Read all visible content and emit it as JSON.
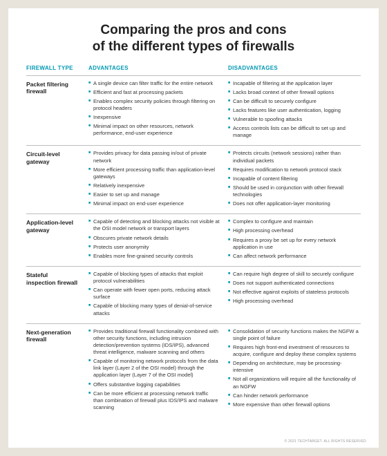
{
  "meta": {
    "title_line1": "Comparing the pros and cons",
    "title_line2": "of the different types of firewalls",
    "footer": "© 2021 TECHTARGET. ALL RIGHTS RESERVED"
  },
  "colors": {
    "accent": "#0099b3",
    "text": "#222222",
    "body_text": "#333333",
    "divider": "#bdbdbd",
    "page_bg": "#ffffff",
    "outer_bg": "#e8e4dc",
    "bullet_sq": "#0099b3"
  },
  "columns": {
    "c1": "FIREWALL TYPE",
    "c2": "ADVANTAGES",
    "c3": "DISADVANTAGES"
  },
  "rows": [
    {
      "type": "Packet filtering firewall",
      "advantages": [
        "A single device can filter traffic for the entire network",
        "Efficient and fast at processing packets",
        "Enables complex security policies through filtering on protocol headers",
        "Inexpensive",
        "Minimal impact on other resources, network performance, end-user experience"
      ],
      "disadvantages": [
        "Incapable of filtering at the application layer",
        "Lacks broad context of other firewall options",
        "Can be difficult to securely configure",
        "Lacks features like user authentication, logging",
        "Vulnerable to spoofing attacks",
        "Access controls lists can be difficult to set up and manage"
      ]
    },
    {
      "type": "Circuit-level gateway",
      "advantages": [
        "Provides privacy for data passing in/out of private network",
        "More efficient processing traffic than application-level gateways",
        "Relatively inexpensive",
        "Easier to set up and manage",
        "Minimal impact on end-user experience"
      ],
      "disadvantages": [
        "Protects circuits (network sessions) rather than individual packets",
        "Requires modification to network protocol stack",
        "Incapable of content filtering",
        "Should be used in conjunction with other firewall technologies",
        "Does not offer application-layer monitoring"
      ]
    },
    {
      "type": "Application-level gateway",
      "advantages": [
        "Capable of detecting and blocking attacks not visible at the OSI model network or transport layers",
        "Obscures private network details",
        "Protects user anonymity",
        "Enables more fine-grained security controls"
      ],
      "disadvantages": [
        "Complex to configure and maintain",
        "High processing overhead",
        "Requires a proxy be set up for every network application in use",
        "Can affect network performance"
      ]
    },
    {
      "type": "Stateful inspection firewall",
      "advantages": [
        "Capable of blocking types of attacks that exploit protocol vulnerabilities",
        "Can operate with fewer open ports, reducing attack surface",
        "Capable of blocking many types of denial-of-service attacks"
      ],
      "disadvantages": [
        "Can require high degree of skill to securely configure",
        "Does not support authenticated connections",
        "Not effective against exploits of stateless protocols",
        "High processing overhead"
      ]
    },
    {
      "type": "Next-generation firewall",
      "advantages": [
        "Provides traditional firewall functionality combined with other security functions, including intrusion detection/prevention systems (IDS/IPS), advanced threat intelligence, malware scanning and others",
        "Capable of monitoring network protocols from the data link layer (Layer 2 of the OSI model) through the application layer (Layer 7 of the OSI model)",
        "Offers substantive logging capabilities",
        "Can be more efficient at processing network traffic than combination of firewall plus IDS/IPS and malware scanning"
      ],
      "disadvantages": [
        "Consolidation of security functions makes the NGFW a single point of failure",
        "Requires high front-end investment of resources to acquire, configure and deploy these complex systems",
        "Depending on architecture, may be processing-intensive",
        "Not all organizations will require all the functionality of an NGFW",
        "Can hinder network performance",
        "More expensive than other firewall options"
      ]
    }
  ]
}
